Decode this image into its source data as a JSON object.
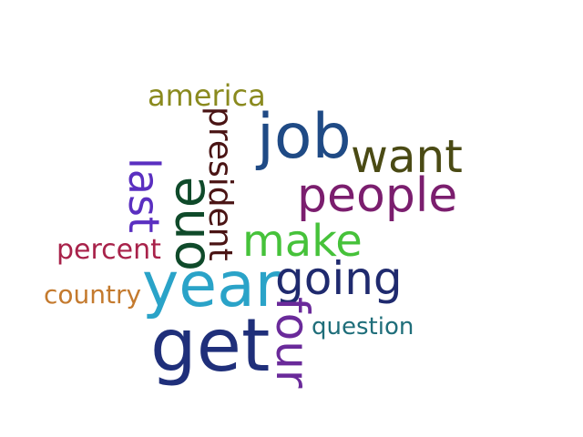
{
  "wordcloud": {
    "words": {
      "job": {
        "text": "job",
        "color": "#1f4a85"
      },
      "people": {
        "text": "people",
        "color": "#7b1e6e"
      },
      "year": {
        "text": "year",
        "color": "#2aa3c8"
      },
      "get": {
        "text": "get",
        "color": "#1f2f7a"
      },
      "want": {
        "text": "want",
        "color": "#4a4a14"
      },
      "going": {
        "text": "going",
        "color": "#1f2a6e"
      },
      "make": {
        "text": "make",
        "color": "#46c23a"
      },
      "one": {
        "text": "one",
        "color": "#0f4a2a"
      },
      "president": {
        "text": "president",
        "color": "#4a1414"
      },
      "america": {
        "text": "america",
        "color": "#8a8a1e"
      },
      "last": {
        "text": "last",
        "color": "#5a2fc0"
      },
      "percent": {
        "text": "percent",
        "color": "#a8224a"
      },
      "country": {
        "text": "country",
        "color": "#c47a2e"
      },
      "four": {
        "text": "four",
        "color": "#6a2a9a"
      },
      "question": {
        "text": "question",
        "color": "#1f6e7a"
      }
    }
  }
}
